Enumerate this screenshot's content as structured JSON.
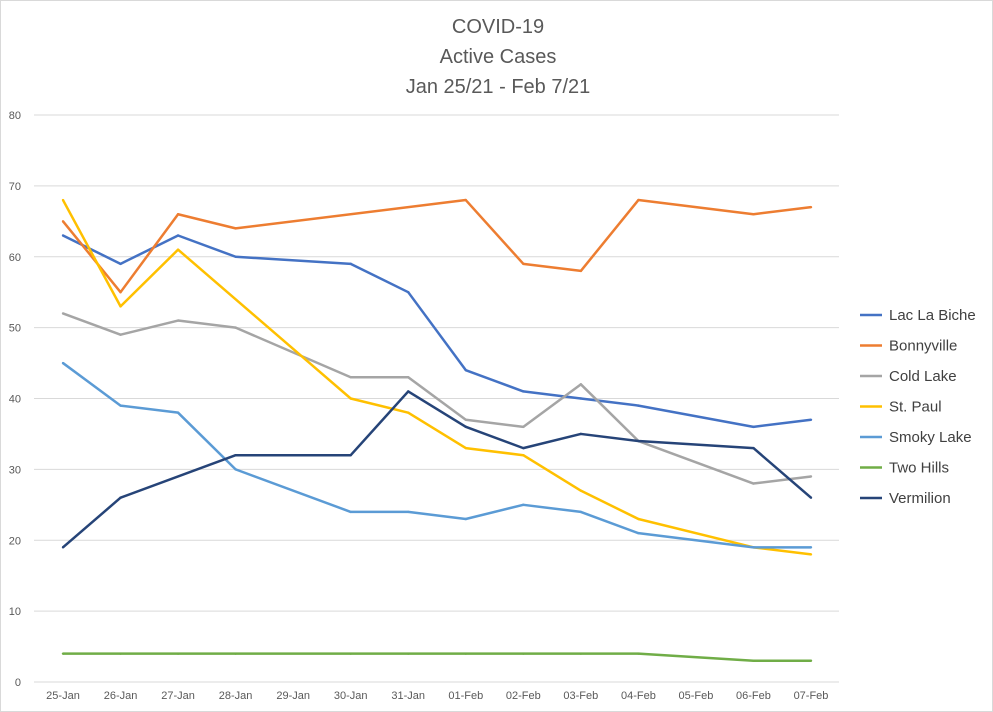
{
  "chart_data": {
    "type": "line",
    "title": [
      "COVID-19",
      "Active Cases",
      "Jan 25/21 - Feb 7/21"
    ],
    "xlabel": "",
    "ylabel": "",
    "ylim": [
      0,
      80
    ],
    "yticks": [
      0,
      10,
      20,
      30,
      40,
      50,
      60,
      70,
      80
    ],
    "grid": true,
    "legend": "right",
    "categories": [
      "25-Jan",
      "26-Jan",
      "27-Jan",
      "28-Jan",
      "29-Jan",
      "30-Jan",
      "31-Jan",
      "01-Feb",
      "02-Feb",
      "03-Feb",
      "04-Feb",
      "05-Feb",
      "06-Feb",
      "07-Feb"
    ],
    "series": [
      {
        "name": "Lac La Biche",
        "color": "#4472c4",
        "values": [
          63,
          59,
          63,
          60,
          null,
          59,
          55,
          44,
          41,
          40,
          39,
          null,
          36,
          37
        ]
      },
      {
        "name": "Bonnyville",
        "color": "#ed7d31",
        "values": [
          65,
          55,
          66,
          64,
          null,
          null,
          null,
          68,
          59,
          58,
          68,
          null,
          66,
          67
        ]
      },
      {
        "name": "Cold Lake",
        "color": "#a5a5a5",
        "values": [
          52,
          49,
          51,
          50,
          null,
          43,
          43,
          37,
          36,
          42,
          34,
          null,
          28,
          29
        ]
      },
      {
        "name": "St. Paul",
        "color": "#ffc000",
        "values": [
          68,
          53,
          61,
          null,
          null,
          40,
          38,
          33,
          32,
          27,
          23,
          null,
          19,
          18
        ]
      },
      {
        "name": "Smoky Lake",
        "color": "#5b9bd5",
        "values": [
          45,
          39,
          38,
          30,
          null,
          24,
          24,
          23,
          25,
          24,
          21,
          null,
          19,
          19
        ]
      },
      {
        "name": "Two Hills",
        "color": "#70ad47",
        "values": [
          4,
          4,
          4,
          4,
          null,
          4,
          4,
          4,
          4,
          4,
          4,
          null,
          3,
          3
        ]
      },
      {
        "name": "Vermilion",
        "color": "#264478",
        "values": [
          19,
          26,
          null,
          32,
          null,
          32,
          41,
          36,
          33,
          35,
          34,
          null,
          33,
          26
        ]
      }
    ]
  }
}
